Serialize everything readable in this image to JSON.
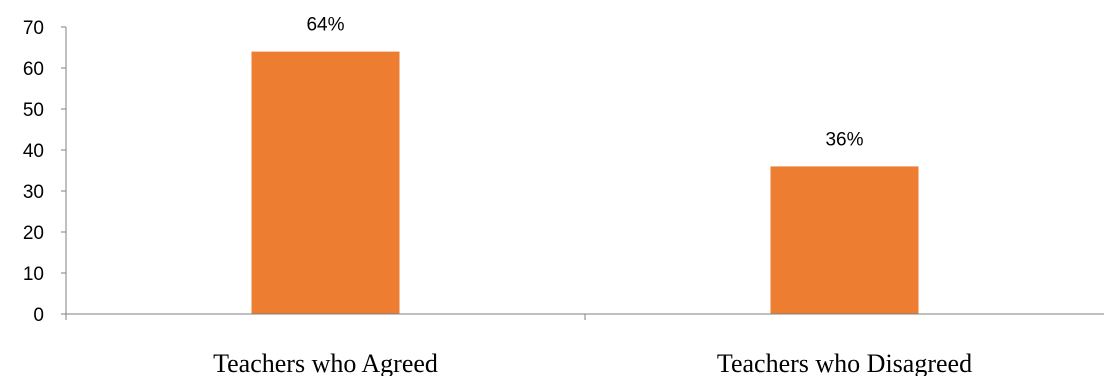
{
  "chart_data": {
    "type": "bar",
    "categories": [
      "Teachers who Agreed",
      "Teachers who Disagreed"
    ],
    "values": [
      64,
      36
    ],
    "data_labels": [
      "64%",
      "36%"
    ],
    "y_ticks": [
      0,
      10,
      20,
      30,
      40,
      50,
      60,
      70
    ],
    "ylim": [
      0,
      70
    ],
    "title": "",
    "xlabel": "",
    "ylabel": "",
    "grid": false,
    "legend": "none",
    "bar_color": "#ED7D31",
    "axis_color": "#808080"
  }
}
